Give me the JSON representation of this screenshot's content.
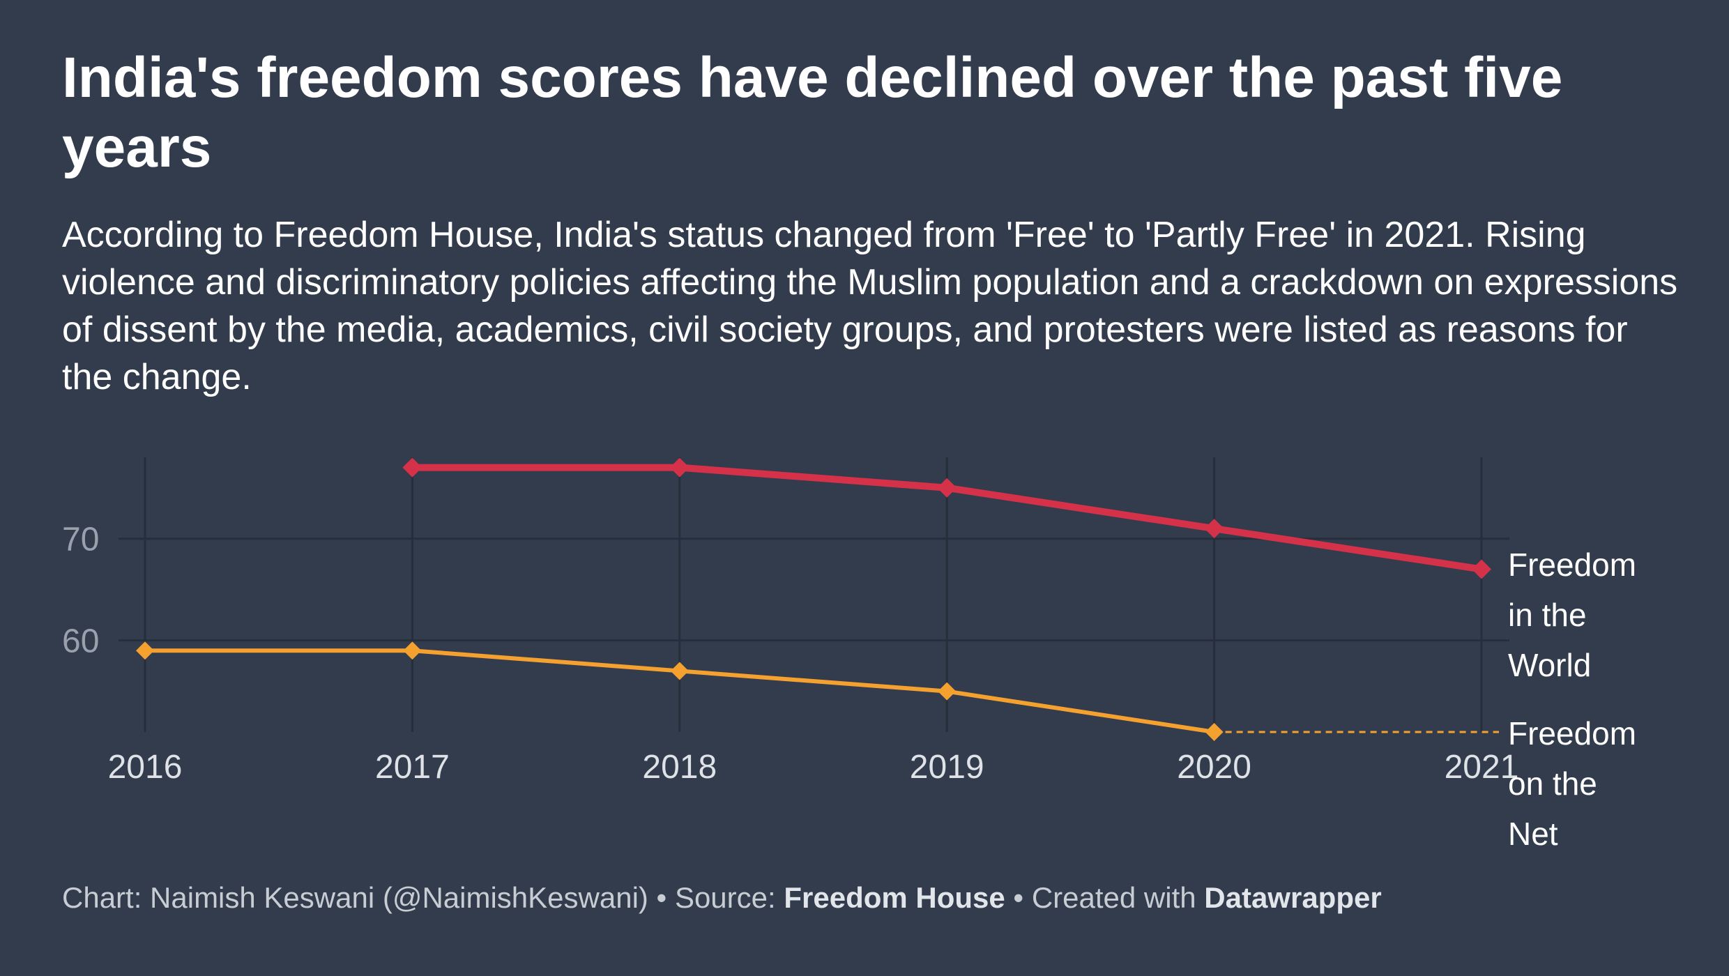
{
  "header": {
    "title": "India's freedom scores have declined over the past five years",
    "description": "According to Freedom House, India's status changed from 'Free' to 'Partly Free' in 2021. Rising violence and discriminatory policies affecting the Muslim population and a crackdown on expressions of dissent by the media, academics, civil society groups, and protesters were listed as reasons for the change."
  },
  "footer": {
    "chart_prefix": "Chart: ",
    "author": "Naimish Keswani (@NaimishKeswani)",
    "separator": " • ",
    "source_prefix": "Source: ",
    "source": "Freedom House",
    "created_prefix": "Created with ",
    "tool": "Datawrapper"
  },
  "colors": {
    "background": "#323c4d",
    "freedom_in_the_world": "#d5324a",
    "freedom_on_the_net": "#f4a12f",
    "grid": "#262e3b",
    "axis_text": "#9aa1ad"
  },
  "chart_data": {
    "type": "line",
    "x": [
      2016,
      2017,
      2018,
      2019,
      2020,
      2021
    ],
    "x_tick_labels": [
      "2016",
      "2017",
      "2018",
      "2019",
      "2020",
      "2021"
    ],
    "y_ticks": [
      60,
      70
    ],
    "y_tick_labels": [
      "60",
      "70"
    ],
    "ylim": [
      51,
      78
    ],
    "grid": true,
    "legend": "direct labels at line ends (right)",
    "series": [
      {
        "name": "Freedom in the World",
        "label_lines": [
          "Freedom",
          "in the",
          "World"
        ],
        "color": "#d5324a",
        "marker": "diamond",
        "values": [
          null,
          77,
          77,
          75,
          71,
          67
        ]
      },
      {
        "name": "Freedom on the Net",
        "label_lines": [
          "Freedom",
          "on the",
          "Net"
        ],
        "color": "#f4a12f",
        "marker": "diamond",
        "values": [
          59,
          59,
          57,
          55,
          51,
          null
        ],
        "dashed_extension_to": 2021
      }
    ]
  }
}
